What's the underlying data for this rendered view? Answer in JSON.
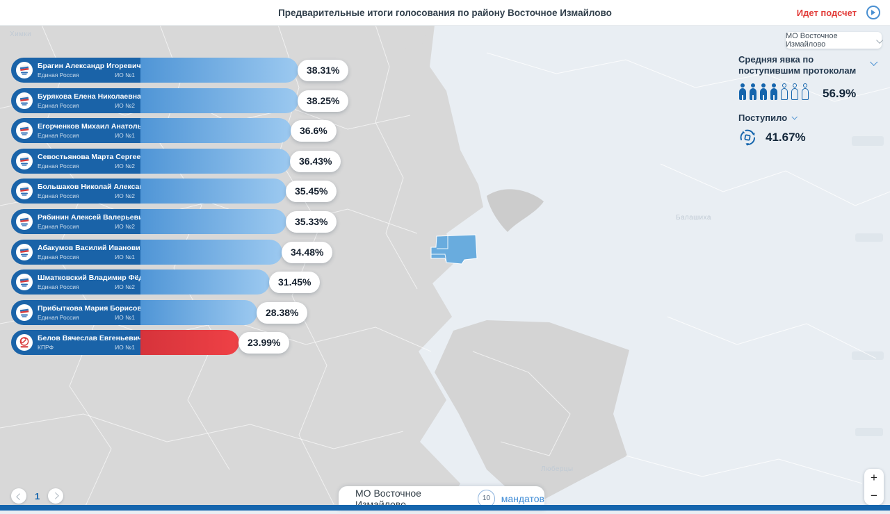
{
  "header": {
    "title": "Предварительные итоги голосования по району Восточное Измайлово",
    "status_label": "Идет подсчет"
  },
  "region_dropdown": {
    "value": "МО Восточное Измайлово"
  },
  "stats": {
    "turnout_title": "Средняя явка по поступившим протоколам",
    "turnout_value": "56.9%",
    "turnout_icons_total": 7,
    "turnout_icons_filled": 4,
    "received_label": "Поступило",
    "received_value": "41.67%"
  },
  "candidates": [
    {
      "name": "Брагин Александр Игоревич",
      "party": "Единая Россия",
      "district": "ИО №1",
      "value_label": "38.31%",
      "pct": 38.31,
      "bar_color": "blue"
    },
    {
      "name": "Бурякова Елена Николаевна",
      "party": "Единая Россия",
      "district": "ИО №2",
      "value_label": "38.25%",
      "pct": 38.25,
      "bar_color": "blue"
    },
    {
      "name": "Егорченков Михаил Анатольевич",
      "party": "Единая Россия",
      "district": "ИО №1",
      "value_label": "36.6%",
      "pct": 36.6,
      "bar_color": "blue"
    },
    {
      "name": "Севостьянова Марта Сергеевна",
      "party": "Единая Россия",
      "district": "ИО №2",
      "value_label": "36.43%",
      "pct": 36.43,
      "bar_color": "blue"
    },
    {
      "name": "Большаков Николай Александрович",
      "party": "Единая Россия",
      "district": "ИО №2",
      "value_label": "35.45%",
      "pct": 35.45,
      "bar_color": "blue"
    },
    {
      "name": "Рябинин Алексей Валерьевич",
      "party": "Единая Россия",
      "district": "ИО №2",
      "value_label": "35.33%",
      "pct": 35.33,
      "bar_color": "blue"
    },
    {
      "name": "Абакумов Василий Иванович",
      "party": "Единая Россия",
      "district": "ИО №1",
      "value_label": "34.48%",
      "pct": 34.48,
      "bar_color": "blue"
    },
    {
      "name": "Шматковский Владимир Фёдорович",
      "party": "Единая Россия",
      "district": "ИО №2",
      "value_label": "31.45%",
      "pct": 31.45,
      "bar_color": "blue"
    },
    {
      "name": "Прибыткова Мария Борисовна",
      "party": "Единая Россия",
      "district": "ИО №1",
      "value_label": "28.38%",
      "pct": 28.38,
      "bar_color": "blue"
    },
    {
      "name": "Белов Вячеслав Евгеньевич",
      "party": "КПРФ",
      "district": "ИО №1",
      "value_label": "23.99%",
      "pct": 23.99,
      "bar_color": "red"
    }
  ],
  "pagination": {
    "page": "1"
  },
  "map": {
    "labels": [
      {
        "text": "Химки"
      },
      {
        "text": "Балашиха"
      },
      {
        "text": "Люберцы"
      }
    ],
    "selected_area_color": "#69acde"
  },
  "footer_card": {
    "municipality": "МО Восточное Измайлово",
    "mandates_count": "10",
    "mandates_label": "мандатов"
  },
  "zoom_controls": {
    "zoom_in": "+",
    "zoom_out": "−"
  },
  "colors": {
    "accent_blue": "#1565ad",
    "bar_info_blue": "#1a63a8",
    "bar_fill_blue": "#4f95d6",
    "bar_fill_red": "#e13b40",
    "status_red": "#e23c39",
    "map_gray": "#d8d8d8",
    "map_light": "#e9eef3"
  }
}
